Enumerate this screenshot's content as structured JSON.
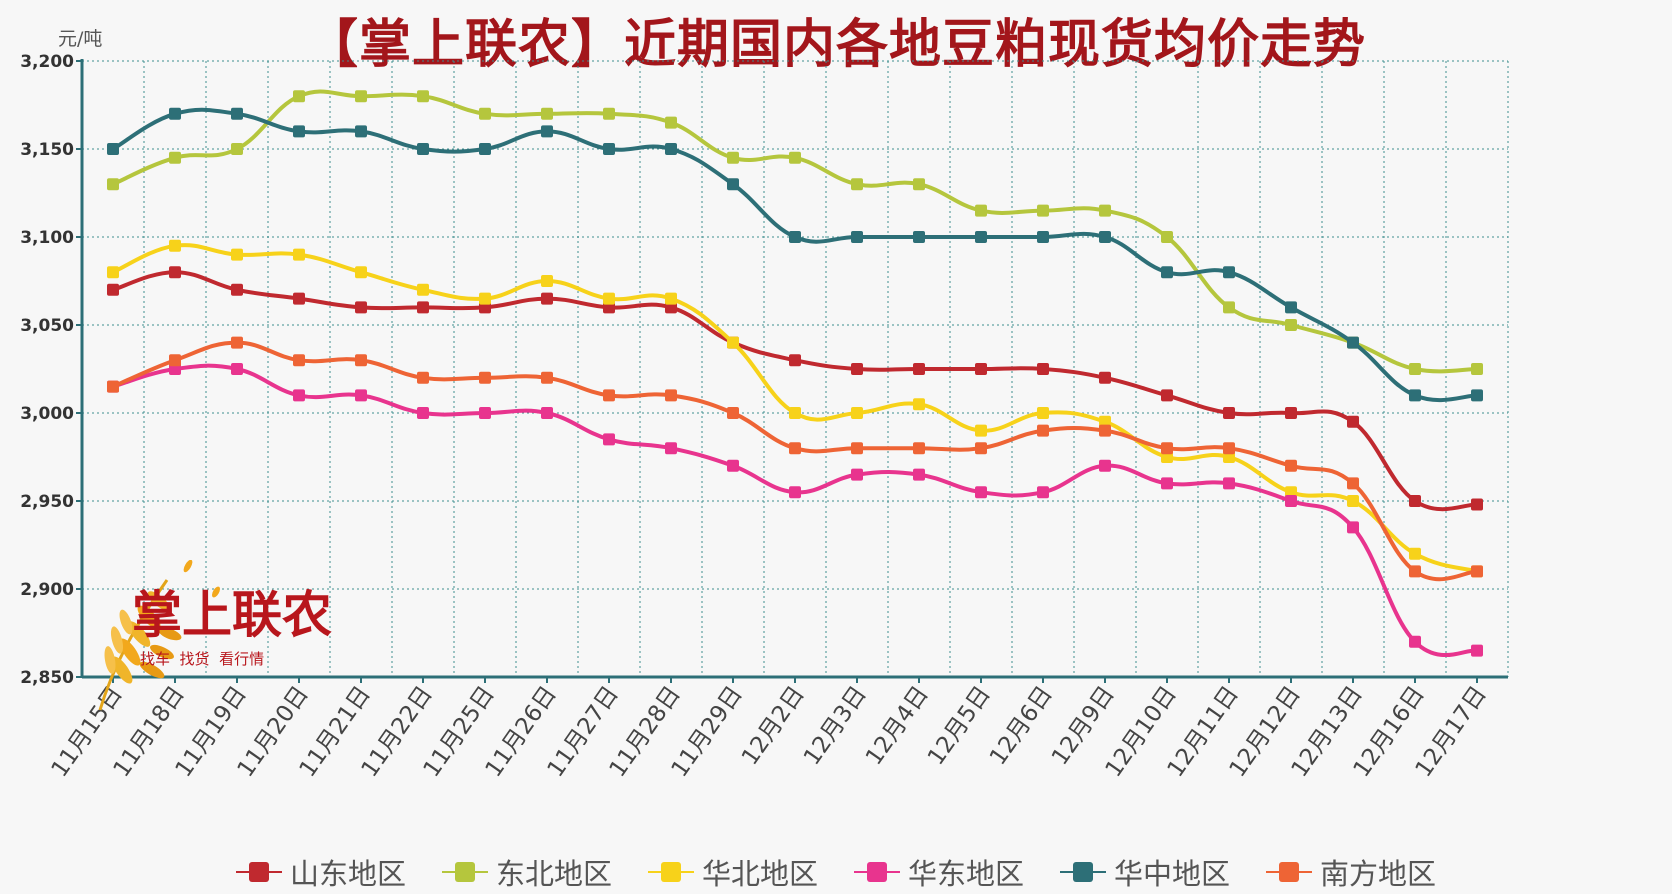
{
  "title": "【掌上联农】近期国内各地豆粕现货均价走势",
  "logo": {
    "brand": "掌上联农",
    "slogan": "找车  找货  看行情"
  },
  "colors": {
    "山东地区": "#c0292f",
    "东北地区": "#b5c63d",
    "华北地区": "#f7d21a",
    "华东地区": "#e8348e",
    "华中地区": "#2d6f77",
    "南方地区": "#ee6435",
    "grid": "#3f8f8f",
    "axis": "#2d6f77"
  },
  "chart_data": {
    "type": "line",
    "title": "【掌上联农】近期国内各地豆粕现货均价走势",
    "ylabel": "元/吨",
    "xlabel": "",
    "ylim": [
      2850,
      3200
    ],
    "yticks": [
      "2,850",
      "2,900",
      "2,950",
      "3,000",
      "3,050",
      "3,100",
      "3,150",
      "3,200"
    ],
    "ytick_values": [
      2850,
      2900,
      2950,
      3000,
      3050,
      3100,
      3150,
      3200
    ],
    "grid": true,
    "legend_position": "bottom",
    "categories": [
      "11月15日",
      "11月18日",
      "11月19日",
      "11月20日",
      "11月21日",
      "11月22日",
      "11月25日",
      "11月26日",
      "11月27日",
      "11月28日",
      "11月29日",
      "12月2日",
      "12月3日",
      "12月4日",
      "12月5日",
      "12月6日",
      "12月9日",
      "12月10日",
      "12月11日",
      "12月12日",
      "12月13日",
      "12月16日",
      "12月17日"
    ],
    "series": [
      {
        "name": "山东地区",
        "values": [
          3070,
          3080,
          3070,
          3065,
          3060,
          3060,
          3060,
          3065,
          3060,
          3060,
          3040,
          3030,
          3025,
          3025,
          3025,
          3025,
          3020,
          3010,
          3000,
          3000,
          2995,
          2950,
          2948
        ]
      },
      {
        "name": "东北地区",
        "values": [
          3130,
          3145,
          3150,
          3180,
          3180,
          3180,
          3170,
          3170,
          3170,
          3165,
          3145,
          3145,
          3130,
          3130,
          3115,
          3115,
          3115,
          3100,
          3060,
          3050,
          3040,
          3025,
          3025
        ]
      },
      {
        "name": "华北地区",
        "values": [
          3080,
          3095,
          3090,
          3090,
          3080,
          3070,
          3065,
          3075,
          3065,
          3065,
          3040,
          3000,
          3000,
          3005,
          2990,
          3000,
          2995,
          2975,
          2975,
          2955,
          2950,
          2920,
          2910
        ]
      },
      {
        "name": "华东地区",
        "values": [
          3015,
          3025,
          3025,
          3010,
          3010,
          3000,
          3000,
          3000,
          2985,
          2980,
          2970,
          2955,
          2965,
          2965,
          2955,
          2955,
          2970,
          2960,
          2960,
          2950,
          2935,
          2870,
          2865
        ]
      },
      {
        "name": "华中地区",
        "values": [
          3150,
          3170,
          3170,
          3160,
          3160,
          3150,
          3150,
          3160,
          3150,
          3150,
          3130,
          3100,
          3100,
          3100,
          3100,
          3100,
          3100,
          3080,
          3080,
          3060,
          3040,
          3010,
          3010
        ]
      },
      {
        "name": "南方地区",
        "values": [
          3015,
          3030,
          3040,
          3030,
          3030,
          3020,
          3020,
          3020,
          3010,
          3010,
          3000,
          2980,
          2980,
          2980,
          2980,
          2990,
          2990,
          2980,
          2980,
          2970,
          2960,
          2910,
          2910
        ]
      }
    ]
  }
}
